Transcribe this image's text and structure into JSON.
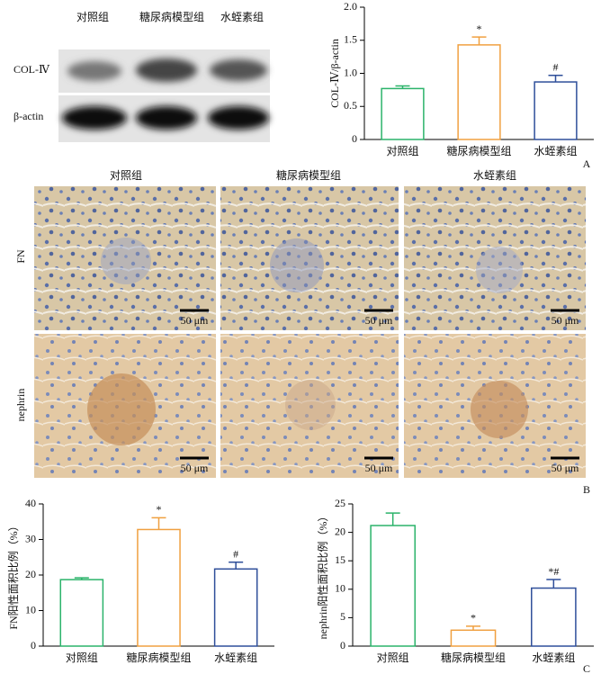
{
  "chart_data": [
    {
      "type": "bar",
      "ylabel": "COL-Ⅳ/β-actin",
      "categories": [
        "对照组",
        "糖尿病模型组",
        "水蛭素组"
      ],
      "values": [
        0.77,
        1.43,
        0.87
      ],
      "errors": [
        0.04,
        0.12,
        0.1
      ],
      "annotations": [
        null,
        "*",
        "#"
      ],
      "colors": [
        "#2bb36a",
        "#f0a040",
        "#2f4f9a"
      ],
      "ylim": [
        0,
        2
      ],
      "yticks": [
        0,
        0.5,
        {
          "value": 1,
          "label": "1.0"
        },
        1.5,
        {
          "value": 2,
          "label": "2.0"
        }
      ],
      "panel": "A"
    },
    {
      "type": "bar",
      "ylabel": "FN阳性面积比例（%）",
      "categories": [
        "对照组",
        "糖尿病模型组",
        "水蛭素组"
      ],
      "values": [
        18.7,
        32.8,
        21.7
      ],
      "errors": [
        0.5,
        3.3,
        1.9
      ],
      "annotations": [
        null,
        "*",
        "#"
      ],
      "colors": [
        "#2bb36a",
        "#f0a040",
        "#2f4f9a"
      ],
      "ylim": [
        0,
        40
      ],
      "yticks": [
        0,
        10,
        20,
        30,
        40
      ]
    },
    {
      "type": "bar",
      "ylabel": "nephrin阳性面积比例（%）",
      "categories": [
        "对照组",
        "糖尿病模型组",
        "水蛭素组"
      ],
      "values": [
        21.2,
        2.8,
        10.2
      ],
      "errors": [
        2.2,
        0.7,
        1.5
      ],
      "annotations": [
        null,
        "*",
        "*#"
      ],
      "colors": [
        "#2bb36a",
        "#f0a040",
        "#2f4f9a"
      ],
      "ylim": [
        0,
        25
      ],
      "yticks": [
        0,
        5,
        10,
        15,
        20,
        25
      ],
      "panel": "C"
    }
  ],
  "blot": {
    "rows": [
      "COL-Ⅳ",
      "β-actin"
    ]
  },
  "histology": {
    "rows": [
      "FN",
      "nephrin"
    ],
    "scale_bar": "50 μm",
    "panel": "B"
  }
}
